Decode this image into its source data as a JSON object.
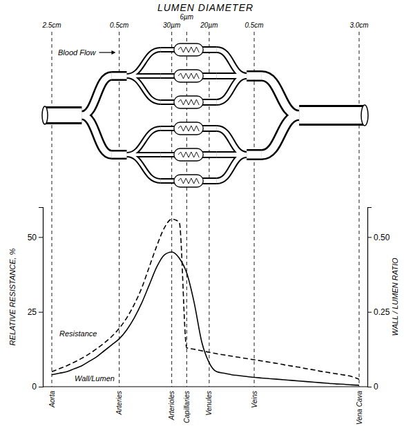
{
  "chart_data": {
    "type": "line",
    "title": "LUMEN DIAMETER",
    "annotations": [
      "Blood Flow"
    ],
    "categories": [
      "Aorta",
      null,
      null,
      null,
      null,
      null,
      null,
      null,
      null,
      "Arteries",
      null,
      null,
      null,
      null,
      null,
      null,
      "Arterioles",
      null,
      "Capillaries",
      null,
      null,
      "Venules",
      null,
      null,
      null,
      null,
      null,
      "Veins",
      null,
      null,
      null,
      null,
      null,
      null,
      null,
      null,
      null,
      null,
      null,
      null,
      null,
      "Vena Cava"
    ],
    "lumen_diameter": [
      "2.5cm",
      null,
      null,
      null,
      null,
      null,
      null,
      null,
      null,
      "0.5cm",
      null,
      null,
      null,
      null,
      null,
      null,
      "30µm",
      null,
      "6µm",
      null,
      null,
      "20µm",
      null,
      null,
      null,
      null,
      null,
      "0.5cm",
      null,
      null,
      null,
      null,
      null,
      null,
      null,
      null,
      null,
      null,
      null,
      null,
      null,
      "3.0cm"
    ],
    "ylabel": "RELATIVE RESISTANCE, %",
    "y2label": "WALL / LUMEN RATIO",
    "ylim": [
      0,
      60
    ],
    "yticks": [
      0,
      25,
      50
    ],
    "y2lim": [
      0,
      0.6
    ],
    "y2ticks": [
      0,
      0.25,
      {
        "value": 0.5,
        "label": "0.50"
      }
    ],
    "grid": true,
    "series": [
      {
        "name": "Resistance",
        "color": "#000000",
        "line_style": "dashed",
        "values": [
          5,
          6,
          7,
          8.2,
          9.5,
          11,
          12.7,
          14.6,
          16.8,
          19.5,
          23,
          27.5,
          33,
          40,
          47,
          53,
          56,
          55,
          13,
          12.5,
          12,
          11.5,
          11,
          10.6,
          10.2,
          9.8,
          9.4,
          9,
          8.6,
          8.2,
          7.8,
          7.3,
          6.9,
          6.5,
          6,
          5.6,
          5.1,
          4.7,
          4.3,
          3.9,
          3.4,
          2.5
        ]
      },
      {
        "name": "Wall/Lumen",
        "color": "#000000",
        "line_style": "solid",
        "axis": "y2",
        "values": [
          0.04,
          0.045,
          0.05,
          0.06,
          0.07,
          0.085,
          0.1,
          0.12,
          0.14,
          0.16,
          0.19,
          0.23,
          0.28,
          0.34,
          0.4,
          0.44,
          0.45,
          0.43,
          0.38,
          0.28,
          0.15,
          0.08,
          0.05,
          0.045,
          0.04,
          0.037,
          0.034,
          0.031,
          0.029,
          0.027,
          0.025,
          0.023,
          0.021,
          0.019,
          0.017,
          0.015,
          0.013,
          0.011,
          0.009,
          0.008,
          0.006,
          0.005
        ]
      }
    ]
  }
}
